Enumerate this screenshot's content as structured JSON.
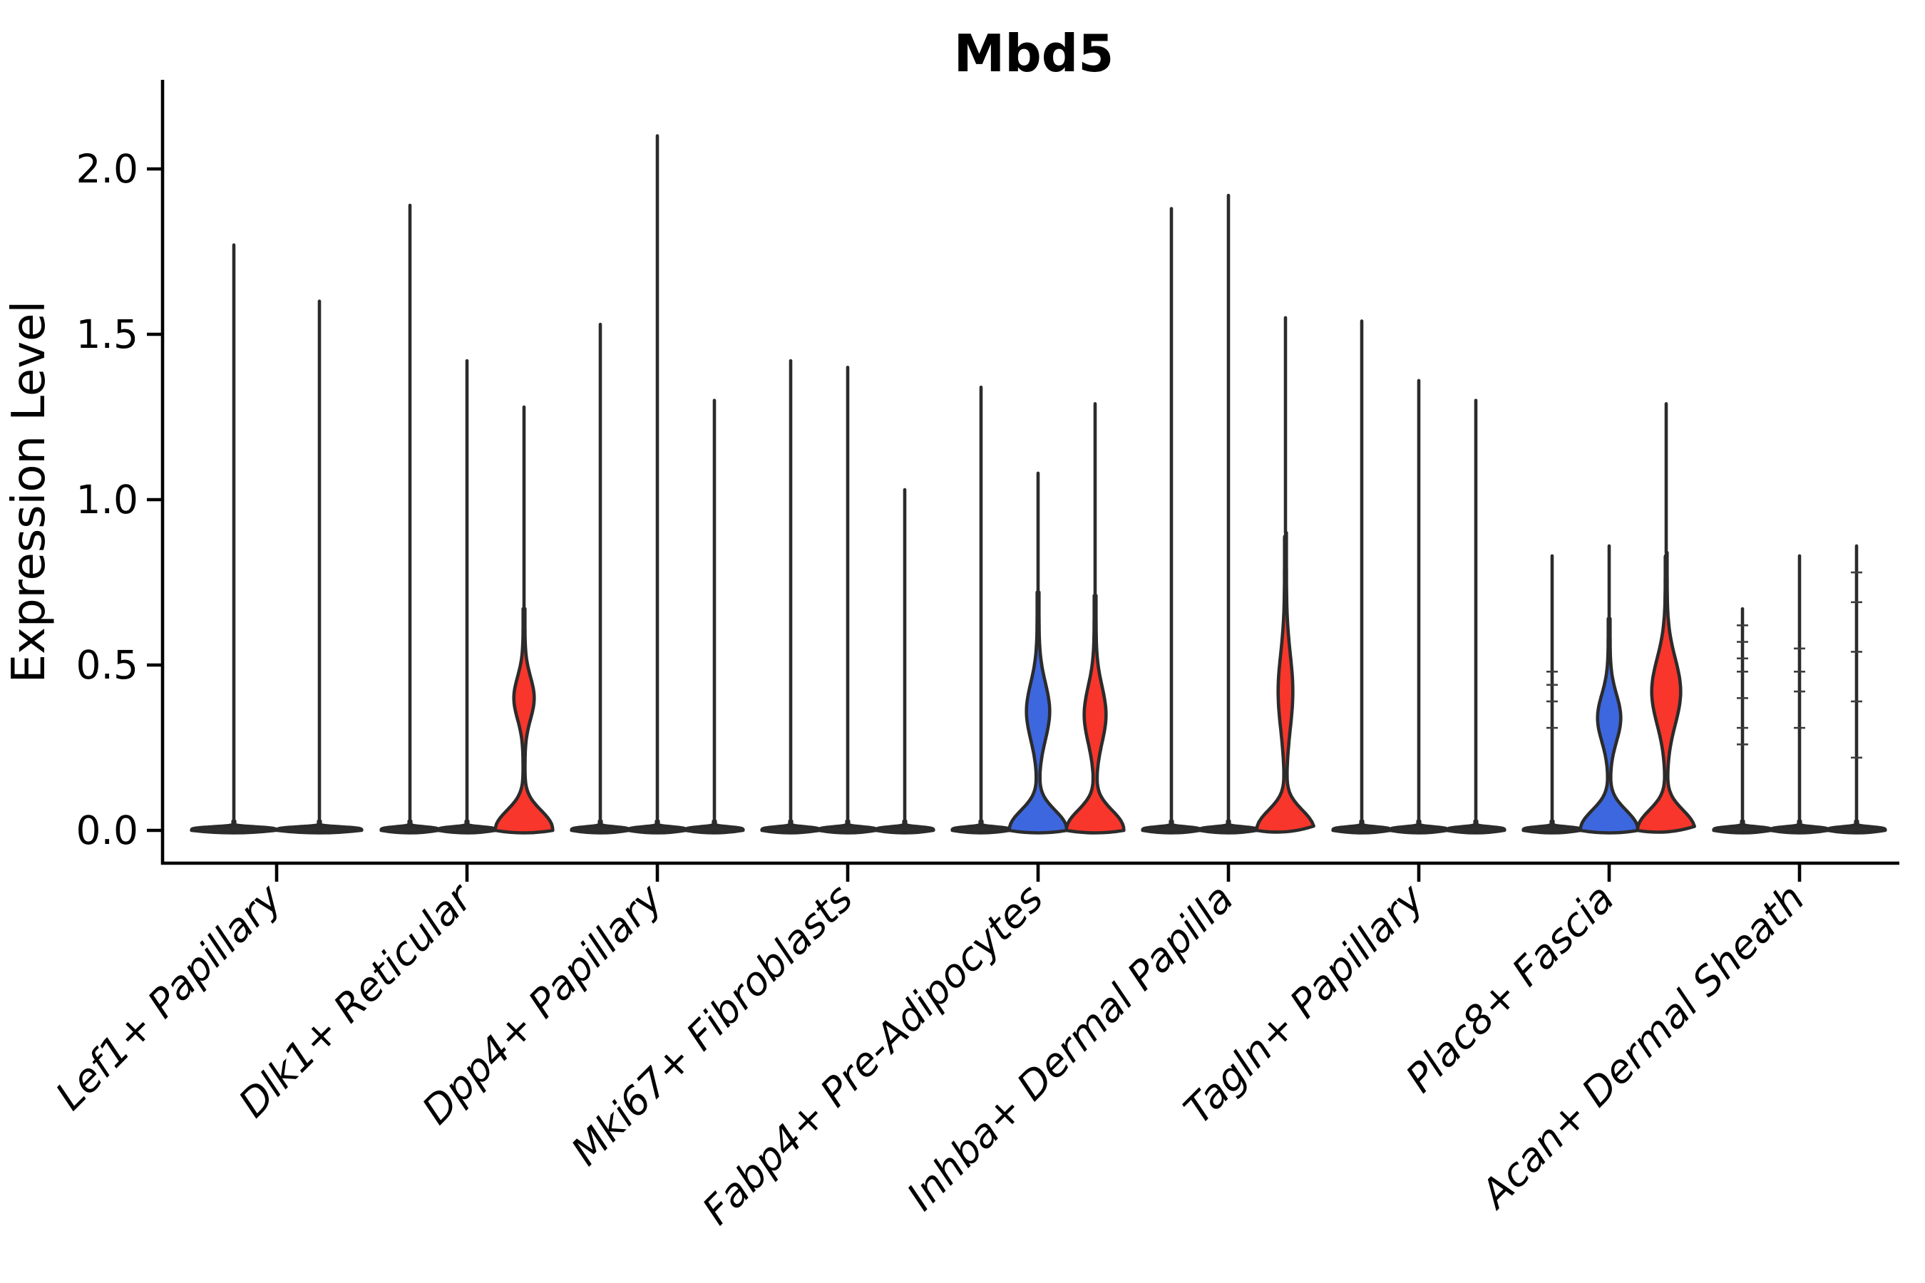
{
  "title": "Mbd5",
  "colors": {
    "blue": "#3D67DE",
    "red": "#F8362B",
    "violin_outline": "#2B2B2B",
    "thin_violin_fill": "#2E2E2E",
    "axis": "#000000",
    "background": "#FFFFFF"
  },
  "chart_data": {
    "type": "violin",
    "title": "Mbd5",
    "xlabel": "",
    "ylabel": "Expression Level",
    "ylim": [
      -0.1,
      2.27
    ],
    "grid": false,
    "legend": "none",
    "yticks": [
      {
        "value": 0.0,
        "label": "0.0"
      },
      {
        "value": 0.5,
        "label": "0.5"
      },
      {
        "value": 1.0,
        "label": "1.0"
      },
      {
        "value": 1.5,
        "label": "1.5"
      },
      {
        "value": 2.0,
        "label": "2.0"
      }
    ],
    "categories": [
      "Lef1+ Papillary",
      "Dlk1+ Reticular",
      "Dpp4+ Papillary",
      "Mki67+ Fibroblasts",
      "Fabp4+ Pre-Adipocytes",
      "Inhba+ Dermal Papilla",
      "Tagln+ Papillary",
      "Plac8+ Fascia",
      "Acan+ Dermal Sheath"
    ],
    "groups": [
      {
        "label": "Lef1+ Papillary",
        "violins": [
          {
            "max": 1.77,
            "fill": "dark"
          },
          {
            "max": 1.6,
            "fill": "dark"
          }
        ]
      },
      {
        "label": "Dlk1+ Reticular",
        "violins": [
          {
            "max": 1.89,
            "fill": "dark"
          },
          {
            "max": 1.42,
            "fill": "dark"
          },
          {
            "max": 1.28,
            "fill": "red",
            "lens": {
              "c": 0.4,
              "s": 0.09,
              "w": 13
            }
          }
        ]
      },
      {
        "label": "Dpp4+ Papillary",
        "violins": [
          {
            "max": 1.53,
            "fill": "dark"
          },
          {
            "max": 2.1,
            "fill": "dark"
          },
          {
            "max": 1.3,
            "fill": "dark"
          }
        ]
      },
      {
        "label": "Mki67+ Fibroblasts",
        "violins": [
          {
            "max": 1.42,
            "fill": "dark"
          },
          {
            "max": 1.4,
            "fill": "dark"
          },
          {
            "max": 1.03,
            "fill": "dark"
          }
        ]
      },
      {
        "label": "Fabp4+ Pre-Adipocytes",
        "violins": [
          {
            "max": 1.34,
            "fill": "dark"
          },
          {
            "max": 1.08,
            "fill": "blue",
            "lens": {
              "c": 0.36,
              "s": 0.12,
              "w": 15
            }
          },
          {
            "max": 1.29,
            "fill": "red",
            "lens": {
              "c": 0.35,
              "s": 0.12,
              "w": 14
            }
          }
        ]
      },
      {
        "label": "Inhba+ Dermal Papilla",
        "violins": [
          {
            "max": 1.88,
            "fill": "dark"
          },
          {
            "max": 1.92,
            "fill": "dark"
          },
          {
            "max": 1.55,
            "fill": "red",
            "lens": {
              "c": 0.42,
              "s": 0.16,
              "w": 9
            }
          }
        ]
      },
      {
        "label": "Tagln+ Papillary",
        "violins": [
          {
            "max": 1.54,
            "fill": "dark"
          },
          {
            "max": 1.36,
            "fill": "dark"
          },
          {
            "max": 1.3,
            "fill": "dark"
          }
        ]
      },
      {
        "label": "Plac8+ Fascia",
        "violins": [
          {
            "max": 0.83,
            "fill": "dark",
            "dashes": [
              0.31,
              0.39,
              0.44,
              0.48
            ]
          },
          {
            "max": 0.86,
            "fill": "blue",
            "lens": {
              "c": 0.34,
              "s": 0.1,
              "w": 15
            }
          },
          {
            "max": 1.29,
            "fill": "red",
            "lens": {
              "c": 0.42,
              "s": 0.14,
              "w": 19
            }
          }
        ]
      },
      {
        "label": "Acan+ Dermal Sheath",
        "violins": [
          {
            "max": 0.67,
            "fill": "dark",
            "dashes": [
              0.26,
              0.31,
              0.4,
              0.48,
              0.52,
              0.57,
              0.62
            ]
          },
          {
            "max": 0.83,
            "fill": "dark",
            "dashes": [
              0.31,
              0.42,
              0.48,
              0.55
            ]
          },
          {
            "max": 0.86,
            "fill": "dark",
            "dashes": [
              0.22,
              0.39,
              0.54,
              0.69,
              0.78
            ]
          }
        ]
      }
    ]
  }
}
